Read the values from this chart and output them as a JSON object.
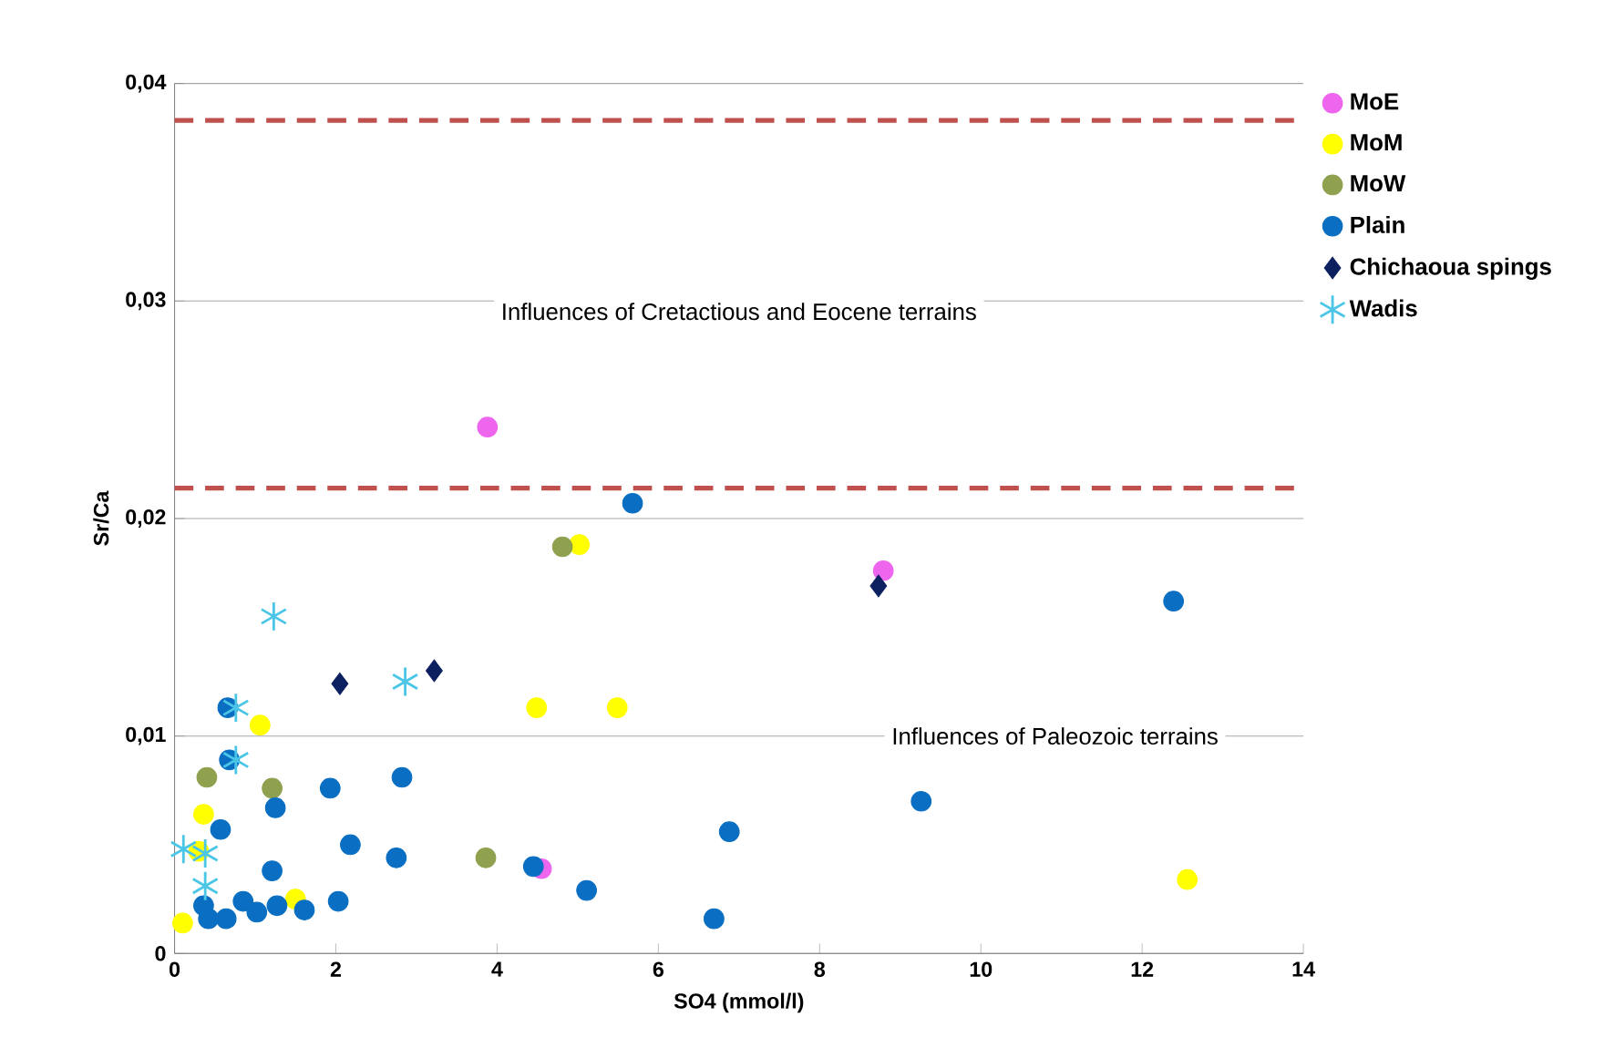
{
  "chart_data": {
    "type": "scatter",
    "xlabel": "SO4 (mmol/l)",
    "ylabel": "Sr/Ca",
    "xlim": [
      0,
      14
    ],
    "xticks": [
      0,
      2,
      4,
      6,
      8,
      10,
      12,
      14
    ],
    "ylim": [
      0,
      0.04
    ],
    "yticks": [
      {
        "value": 0,
        "label": "0"
      },
      {
        "value": 0.01,
        "label": "0,01"
      },
      {
        "value": 0.02,
        "label": "0,02"
      },
      {
        "value": 0.03,
        "label": "0,03"
      },
      {
        "value": 0.04,
        "label": "0,04"
      }
    ],
    "grid": "y",
    "legend": "right",
    "series": [
      {
        "name": "MoE",
        "color": "#ee66ee",
        "marker": "circle",
        "x": [
          3.88,
          4.55,
          8.79
        ],
        "values": [
          0.0242,
          0.0039,
          0.0176
        ]
      },
      {
        "name": "MoM",
        "color": "#ffff00",
        "marker": "circle",
        "x": [
          0.1,
          0.36,
          0.3,
          1.06,
          1.5,
          5.02,
          4.49,
          5.49,
          12.56
        ],
        "values": [
          0.0014,
          0.0064,
          0.0047,
          0.0105,
          0.0025,
          0.0188,
          0.0113,
          0.0113,
          0.0034
        ]
      },
      {
        "name": "MoW",
        "color": "#8fa14f",
        "marker": "circle",
        "x": [
          0.4,
          1.21,
          3.86,
          4.81
        ],
        "values": [
          0.0081,
          0.0076,
          0.0044,
          0.0187
        ]
      },
      {
        "name": "Plain",
        "color": "#0a6fc2",
        "marker": "circle",
        "x": [
          0.66,
          0.68,
          1.25,
          0.57,
          1.93,
          2.82,
          2.18,
          2.75,
          1.21,
          0.36,
          0.42,
          0.64,
          0.85,
          1.02,
          1.27,
          1.61,
          2.03,
          5.68,
          4.45,
          5.11,
          6.88,
          6.69,
          9.26,
          12.39
        ],
        "values": [
          0.0113,
          0.0089,
          0.0067,
          0.0057,
          0.0076,
          0.0081,
          0.005,
          0.0044,
          0.0038,
          0.0022,
          0.0016,
          0.0016,
          0.0024,
          0.0019,
          0.0022,
          0.002,
          0.0024,
          0.0207,
          0.004,
          0.0029,
          0.0056,
          0.0016,
          0.007,
          0.0162
        ]
      },
      {
        "name": "Chichaoua spings",
        "color": "#0c2060",
        "marker": "diamond",
        "x": [
          2.05,
          3.22,
          8.73
        ],
        "values": [
          0.0124,
          0.013,
          0.0169
        ]
      },
      {
        "name": "Wadis",
        "color": "#4cc6e6",
        "marker": "cross",
        "x": [
          1.23,
          2.86,
          0.76,
          0.76,
          0.11,
          0.38,
          0.38
        ],
        "values": [
          0.0155,
          0.0125,
          0.0113,
          0.0089,
          0.0048,
          0.0046,
          0.0031
        ]
      }
    ],
    "ref_lines": [
      {
        "axis": "y",
        "value": 0.0383,
        "color": "#c0504d",
        "line_style": "dashed"
      },
      {
        "axis": "y",
        "value": 0.0214,
        "color": "#c0504d",
        "line_style": "dashed"
      }
    ],
    "annotations": [
      "Influences of Cretactious and Eocene terrains",
      "Influences of Paleozoic terrains"
    ]
  }
}
